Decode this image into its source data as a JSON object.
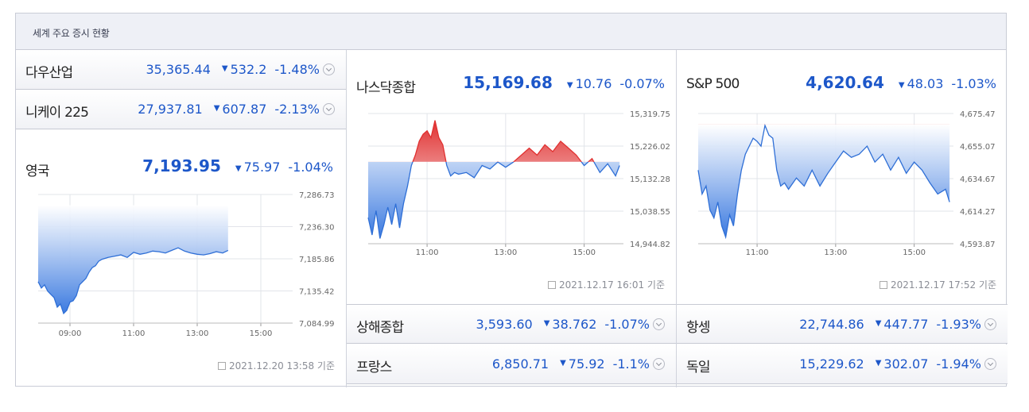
{
  "header": {
    "title": "세계 주요 증시 현황"
  },
  "rows": {
    "dow": {
      "name": "다우산업",
      "value": "35,365.44",
      "change": "532.2",
      "pct": "-1.48%"
    },
    "nikkei": {
      "name": "니케이 225",
      "value": "27,937.81",
      "change": "607.87",
      "pct": "-2.13%"
    },
    "shanghai": {
      "name": "상해종합",
      "value": "3,593.60",
      "change": "38.762",
      "pct": "-1.07%"
    },
    "france": {
      "name": "프랑스",
      "value": "6,850.71",
      "change": "75.92",
      "pct": "-1.1%"
    },
    "hangseng": {
      "name": "항셍",
      "value": "22,744.86",
      "change": "447.77",
      "pct": "-1.93%"
    },
    "germany": {
      "name": "독일",
      "value": "15,229.62",
      "change": "302.07",
      "pct": "-1.94%"
    }
  },
  "icons": {
    "down": "▼",
    "expand": "chevron-down-circle-icon",
    "stamp": "calendar-icon"
  },
  "colors": {
    "down": "#1d57c9",
    "up_fill": "#e03030",
    "down_fill": "#3b7ae0"
  },
  "chart_data": [
    {
      "id": "uk",
      "type": "area",
      "name": "영국",
      "value": "7,193.95",
      "change": "75.97",
      "pct": "-1.04%",
      "baseline": 7269.92,
      "ylim": [
        7084.99,
        7286.73
      ],
      "yticks": [
        "7,286.73",
        "7,236.30",
        "7,185.86",
        "7,135.42",
        "7,084.99"
      ],
      "xlim": [
        8.0,
        16.0
      ],
      "xticks": [
        [
          9,
          "09:00"
        ],
        [
          11,
          "11:00"
        ],
        [
          13,
          "13:00"
        ],
        [
          15,
          "15:00"
        ]
      ],
      "x": [
        8.0,
        8.1,
        8.2,
        8.3,
        8.4,
        8.5,
        8.6,
        8.7,
        8.8,
        8.9,
        9.0,
        9.1,
        9.2,
        9.3,
        9.4,
        9.5,
        9.6,
        9.7,
        9.8,
        9.9,
        10.0,
        10.2,
        10.4,
        10.6,
        10.8,
        11.0,
        11.2,
        11.4,
        11.6,
        11.8,
        12.0,
        12.2,
        12.4,
        12.6,
        12.8,
        13.0,
        13.2,
        13.4,
        13.6,
        13.8,
        13.97
      ],
      "values": [
        7150,
        7140,
        7145,
        7135,
        7130,
        7125,
        7110,
        7115,
        7100,
        7105,
        7118,
        7120,
        7128,
        7145,
        7150,
        7155,
        7165,
        7172,
        7175,
        7182,
        7185,
        7188,
        7190,
        7192,
        7188,
        7196,
        7193,
        7195,
        7198,
        7197,
        7195,
        7199,
        7203,
        7198,
        7195,
        7193,
        7192,
        7194,
        7197,
        7195,
        7199
      ],
      "stamp": "2021.12.20 13:58 기준"
    },
    {
      "id": "nasdaq",
      "type": "area",
      "name": "나스닥종합",
      "value": "15,169.68",
      "change": "10.76",
      "pct": "-0.07%",
      "baseline": 15180.44,
      "ylim": [
        14944.82,
        15319.75
      ],
      "yticks": [
        "15,319.75",
        "15,226.02",
        "15,132.28",
        "15,038.55",
        "14,944.82"
      ],
      "xlim": [
        9.5,
        16.0
      ],
      "xticks": [
        [
          11,
          "11:00"
        ],
        [
          13,
          "13:00"
        ],
        [
          15,
          "15:00"
        ]
      ],
      "x": [
        9.5,
        9.6,
        9.7,
        9.8,
        9.9,
        10.0,
        10.1,
        10.2,
        10.3,
        10.4,
        10.5,
        10.6,
        10.7,
        10.8,
        10.9,
        11.0,
        11.1,
        11.2,
        11.3,
        11.4,
        11.5,
        11.6,
        11.7,
        11.8,
        12.0,
        12.2,
        12.4,
        12.6,
        12.8,
        13.0,
        13.2,
        13.4,
        13.6,
        13.8,
        14.0,
        14.2,
        14.4,
        14.6,
        14.8,
        15.0,
        15.2,
        15.4,
        15.6,
        15.8,
        15.9
      ],
      "values": [
        15020,
        14970,
        15040,
        14960,
        15000,
        15050,
        15000,
        15060,
        14990,
        15060,
        15110,
        15170,
        15200,
        15240,
        15260,
        15270,
        15250,
        15300,
        15250,
        15230,
        15170,
        15140,
        15150,
        15145,
        15150,
        15135,
        15170,
        15160,
        15180,
        15165,
        15180,
        15200,
        15220,
        15200,
        15230,
        15210,
        15240,
        15220,
        15200,
        15170,
        15190,
        15150,
        15175,
        15140,
        15170
      ],
      "stamp": "2021.12.17 16:01 기준"
    },
    {
      "id": "sp500",
      "type": "area",
      "name": "S&P 500",
      "value": "4,620.64",
      "change": "48.03",
      "pct": "-1.03%",
      "baseline": 4668.67,
      "ylim": [
        4593.87,
        4675.47
      ],
      "yticks": [
        "4,675.47",
        "4,655.07",
        "4,634.67",
        "4,614.27",
        "4,593.87"
      ],
      "xlim": [
        9.5,
        16.0
      ],
      "xticks": [
        [
          11,
          "11:00"
        ],
        [
          13,
          "13:00"
        ],
        [
          15,
          "15:00"
        ]
      ],
      "x": [
        9.5,
        9.6,
        9.7,
        9.8,
        9.9,
        10.0,
        10.1,
        10.2,
        10.3,
        10.4,
        10.5,
        10.6,
        10.7,
        10.8,
        10.9,
        11.0,
        11.1,
        11.2,
        11.3,
        11.4,
        11.5,
        11.6,
        11.7,
        11.8,
        12.0,
        12.2,
        12.4,
        12.6,
        12.8,
        13.0,
        13.2,
        13.4,
        13.6,
        13.8,
        14.0,
        14.2,
        14.4,
        14.6,
        14.8,
        15.0,
        15.2,
        15.4,
        15.6,
        15.8,
        15.9
      ],
      "values": [
        4640,
        4625,
        4630,
        4615,
        4610,
        4620,
        4605,
        4598,
        4612,
        4605,
        4625,
        4640,
        4650,
        4655,
        4660,
        4658,
        4655,
        4668,
        4662,
        4660,
        4640,
        4630,
        4632,
        4628,
        4635,
        4630,
        4640,
        4630,
        4638,
        4645,
        4652,
        4648,
        4650,
        4655,
        4645,
        4650,
        4640,
        4648,
        4638,
        4645,
        4640,
        4632,
        4625,
        4628,
        4620
      ],
      "stamp": "2021.12.17 17:52 기준"
    }
  ]
}
